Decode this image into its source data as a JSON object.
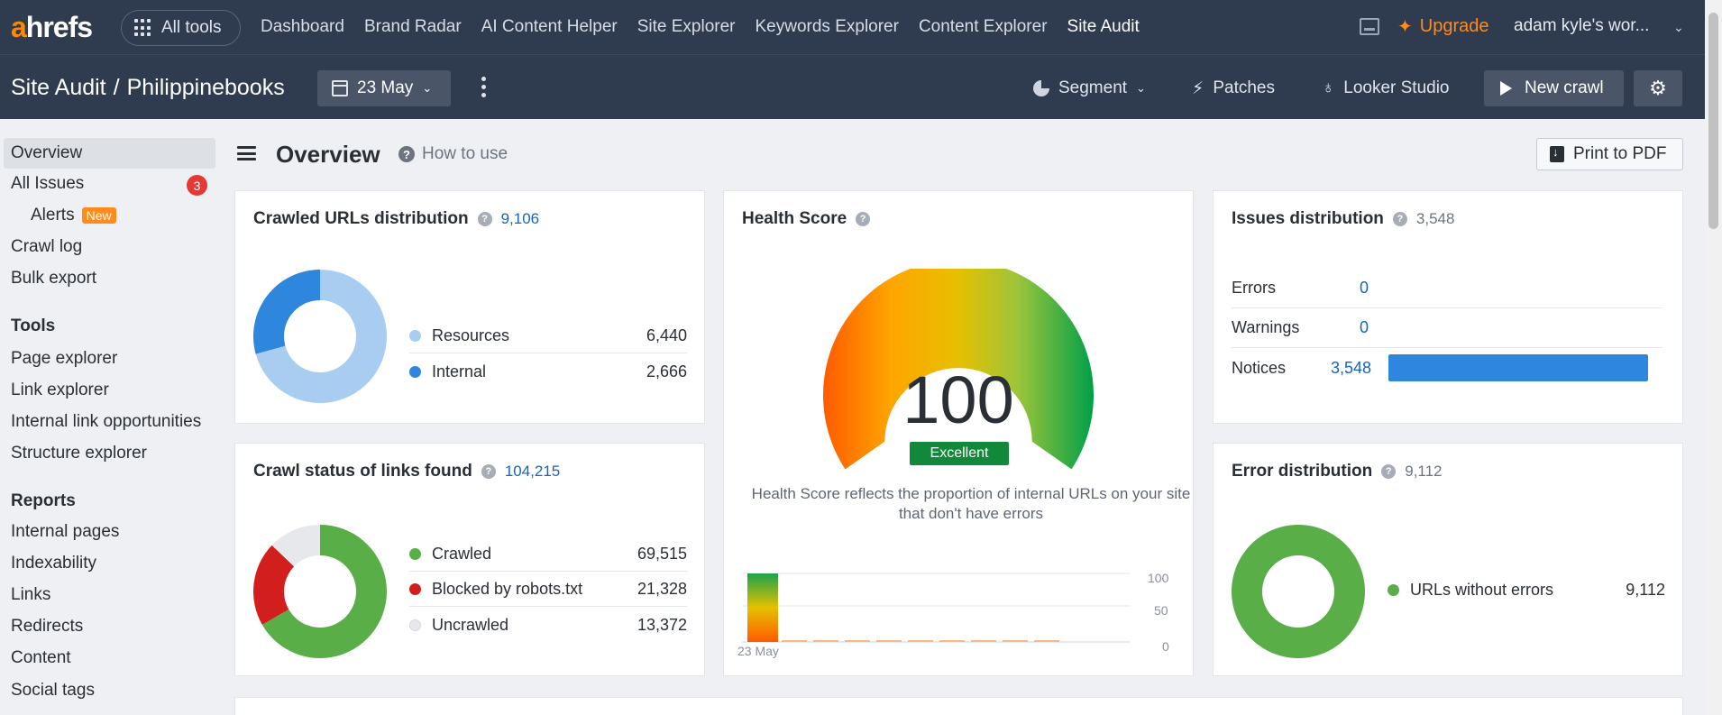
{
  "topnav": {
    "logo": {
      "first": "a",
      "rest": "hrefs"
    },
    "all_tools": "All tools",
    "links": [
      "Dashboard",
      "Brand Radar",
      "AI Content Helper",
      "Site Explorer",
      "Keywords Explorer",
      "Content Explorer",
      "Site Audit"
    ],
    "upgrade": "Upgrade",
    "workspace": "adam kyle's wor..."
  },
  "subbar": {
    "crumb_tool": "Site Audit",
    "crumb_sep": "/",
    "crumb_project": "Philippinebooks",
    "date": "23 May",
    "segment": "Segment",
    "patches": "Patches",
    "looker": "Looker Studio",
    "new_crawl": "New crawl"
  },
  "sidebar": {
    "overview": "Overview",
    "all_issues": "All Issues",
    "all_issues_badge": "3",
    "alerts": "Alerts",
    "alerts_badge": "New",
    "crawl_log": "Crawl log",
    "bulk_export": "Bulk export",
    "tools_heading": "Tools",
    "tools": [
      "Page explorer",
      "Link explorer",
      "Internal link opportunities",
      "Structure explorer"
    ],
    "reports_heading": "Reports",
    "reports": [
      "Internal pages",
      "Indexability",
      "Links",
      "Redirects",
      "Content",
      "Social tags"
    ]
  },
  "header": {
    "title": "Overview",
    "how_to_use": "How to use",
    "print": "Print to PDF"
  },
  "colors": {
    "resources": "#a9cdf0",
    "internal": "#2f86dd",
    "crawled": "#5aae48",
    "blocked": "#d31e1e",
    "uncrawled": "#e6e8eb",
    "no_errors": "#5aae48"
  },
  "crawled_urls": {
    "title": "Crawled URLs distribution",
    "total": "9,106",
    "items": [
      {
        "label": "Resources",
        "value": "6,440",
        "n": 6440
      },
      {
        "label": "Internal",
        "value": "2,666",
        "n": 2666
      }
    ]
  },
  "crawl_status": {
    "title": "Crawl status of links found",
    "total": "104,215",
    "items": [
      {
        "label": "Crawled",
        "value": "69,515",
        "n": 69515
      },
      {
        "label": "Blocked by robots.txt",
        "value": "21,328",
        "n": 21328
      },
      {
        "label": "Uncrawled",
        "value": "13,372",
        "n": 13372
      }
    ]
  },
  "health": {
    "title": "Health Score",
    "score": "100",
    "rating": "Excellent",
    "description": "Health Score reflects the proportion of internal URLs on your site that don't have errors",
    "axis": {
      "y": [
        "100",
        "50",
        "0"
      ],
      "x_first": "23 May"
    }
  },
  "issues": {
    "title": "Issues distribution",
    "total": "3,548",
    "rows": [
      {
        "label": "Errors",
        "value": "0",
        "n": 0
      },
      {
        "label": "Warnings",
        "value": "0",
        "n": 0
      },
      {
        "label": "Notices",
        "value": "3,548",
        "n": 3548
      }
    ]
  },
  "errors": {
    "title": "Error distribution",
    "total": "9,112",
    "items": [
      {
        "label": "URLs without errors",
        "value": "9,112",
        "n": 9112
      }
    ]
  }
}
